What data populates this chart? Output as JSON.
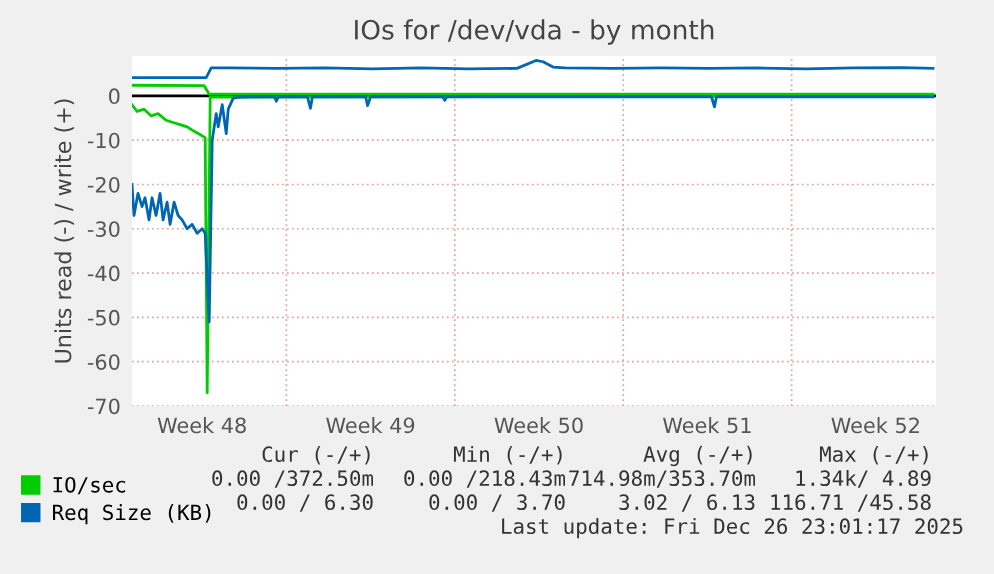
{
  "chart_data": {
    "type": "line",
    "title": "IOs for /dev/vda - by month",
    "ylabel": "Units read (-) / write (+)",
    "xlim": [
      "2025-11-23T12:00",
      "2025-12-26T22:00"
    ],
    "xticks": [
      {
        "value": "2025-11-26T10:00",
        "label": "Week 48"
      },
      {
        "value": "2025-12-03T10:00",
        "label": "Week 49"
      },
      {
        "value": "2025-12-10T10:00",
        "label": "Week 50"
      },
      {
        "value": "2025-12-17T10:00",
        "label": "Week 51"
      },
      {
        "value": "2025-12-24T10:00",
        "label": "Week 52"
      }
    ],
    "ylim": [
      -70,
      9
    ],
    "yticks": [
      -70,
      -60,
      -50,
      -40,
      -30,
      -20,
      -10,
      0
    ],
    "grid": true,
    "legend": "bottom left",
    "marker": "none",
    "line_style": "solid",
    "series": [
      {
        "color": "#00cc00",
        "x": [
          "2025-11-23T12:00",
          "2025-11-23T17:00",
          "2025-11-24T00:00",
          "2025-11-24T07:00",
          "2025-11-24T14:00",
          "2025-11-24T22:00",
          "2025-11-25T05:00",
          "2025-11-25T12:00",
          "2025-11-25T19:00",
          "2025-11-26T02:00",
          "2025-11-26T10:00",
          "2025-11-26T13:00",
          "2025-11-26T15:00",
          "2025-11-26T18:00",
          "2025-12-26T19:00"
        ],
        "values": [
          -2,
          -3.5,
          -3,
          -4.5,
          -4,
          -5.5,
          -6,
          -6.5,
          -7,
          -8,
          -9,
          -9.5,
          -67,
          -0.3,
          0
        ]
      },
      {
        "name": "IO/sec",
        "color": "#00cc00",
        "x": [
          "2025-11-23T12:00",
          "2025-11-26T12:00",
          "2025-11-26T17:00",
          "2025-12-03T12:00",
          "2025-12-13T12:00",
          "2025-12-26T19:00"
        ],
        "values": [
          2.4,
          2.3,
          0.4,
          0.4,
          0.4,
          0.4
        ]
      },
      {
        "color": "#0066b3",
        "x": [
          "2025-11-23T12:00",
          "2025-11-23T14:00",
          "2025-11-23T18:00",
          "2025-11-23T22:00",
          "2025-11-24T01:00",
          "2025-11-24T05:00",
          "2025-11-24T08:00",
          "2025-11-24T12:00",
          "2025-11-24T16:00",
          "2025-11-24T19:00",
          "2025-11-24T23:00",
          "2025-11-25T02:00",
          "2025-11-25T06:00",
          "2025-11-25T10:00",
          "2025-11-25T14:00",
          "2025-11-25T19:00",
          "2025-11-26T00:00",
          "2025-11-26T05:00",
          "2025-11-26T10:00",
          "2025-11-26T13:00",
          "2025-11-26T17:00",
          "2025-11-26T20:00",
          "2025-11-27T00:00",
          "2025-11-27T02:00",
          "2025-11-27T06:00",
          "2025-11-27T10:00",
          "2025-11-27T12:00",
          "2025-11-27T17:00",
          "2025-11-28T00:00",
          "2025-11-28T12:00",
          "2025-11-29T10:00",
          "2025-11-29T12:00",
          "2025-11-29T14:00",
          "2025-11-30T19:00",
          "2025-11-30T22:00",
          "2025-12-01T00:00",
          "2025-12-03T05:00",
          "2025-12-03T07:00",
          "2025-12-03T10:00",
          "2025-12-06T10:00",
          "2025-12-06T12:00",
          "2025-12-06T14:00",
          "2025-12-17T14:00",
          "2025-12-17T17:00",
          "2025-12-17T19:00",
          "2025-12-26T19:00"
        ],
        "values": [
          -20,
          -27,
          -22,
          -25,
          -23,
          -28,
          -23,
          -27,
          -22,
          -28,
          -24,
          -29,
          -24,
          -27,
          -28,
          -30,
          -29,
          -31,
          -30,
          -31,
          -51,
          -10,
          -4,
          -7,
          -2,
          -8.5,
          -3,
          -0.5,
          -0.3,
          -0.2,
          -0.2,
          -1.2,
          -0.2,
          -0.2,
          -2.8,
          -0.2,
          -0.2,
          -2.2,
          -0.2,
          -0.2,
          -1,
          -0.2,
          -0.2,
          -2.5,
          -0.2,
          -0.2
        ]
      },
      {
        "name": "Req Size (KB)",
        "color": "#0066b3",
        "x": [
          "2025-11-23T12:00",
          "2025-11-26T14:00",
          "2025-11-26T19:00",
          "2025-11-27T12:00",
          "2025-11-29T12:00",
          "2025-12-01T12:00",
          "2025-12-03T12:00",
          "2025-12-05T12:00",
          "2025-12-07T12:00",
          "2025-12-09T12:00",
          "2025-12-10T07:00",
          "2025-12-10T14:00",
          "2025-12-11T00:00",
          "2025-12-11T12:00",
          "2025-12-13T12:00",
          "2025-12-15T12:00",
          "2025-12-17T12:00",
          "2025-12-19T12:00",
          "2025-12-21T12:00",
          "2025-12-23T12:00",
          "2025-12-25T12:00",
          "2025-12-26T19:00"
        ],
        "values": [
          4.1,
          4.1,
          6.3,
          6.3,
          6.2,
          6.3,
          6.1,
          6.3,
          6.1,
          6.2,
          8,
          7.7,
          6.5,
          6.3,
          6.2,
          6.3,
          6.2,
          6.3,
          6.1,
          6.3,
          6.4,
          6.2
        ]
      }
    ],
    "annotations": [
      "Cur (-/+)",
      "Min (-/+)",
      "Avg (-/+)",
      "Max (-/+)",
      "0.00 /372.50m",
      "0.00 /218.43m",
      "714.98m/353.70m",
      "1.34k/ 4.89",
      "0.00 / 6.30",
      "0.00 / 3.70",
      "3.02 / 6.13",
      "116.71 /45.58",
      "Last update: Fri Dec 26 23:01:17 2025"
    ]
  }
}
